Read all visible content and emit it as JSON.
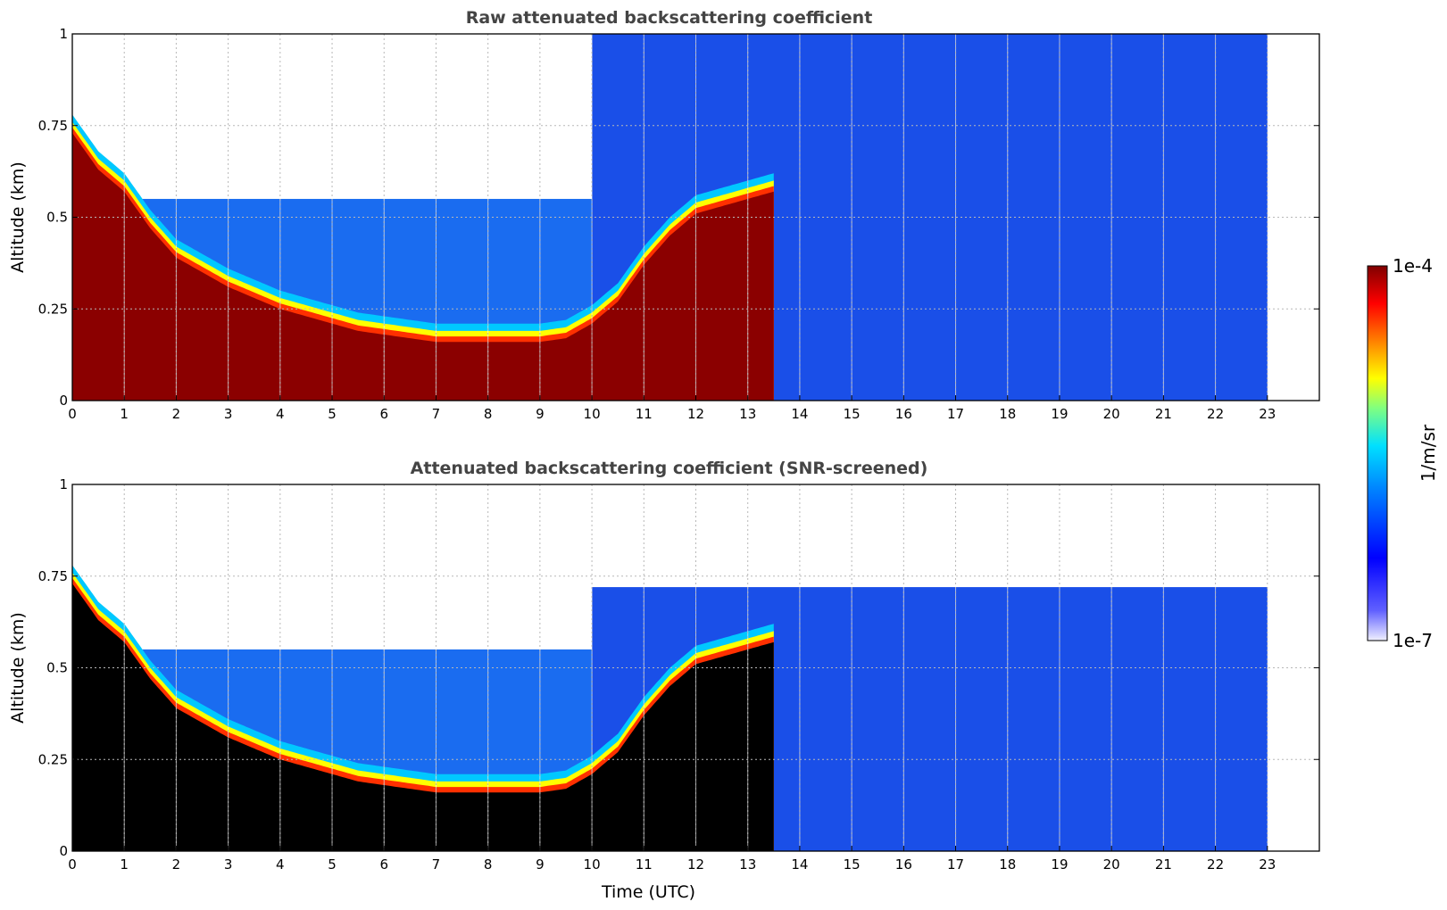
{
  "chart_data": [
    {
      "type": "heatmap",
      "title": "Raw attenuated backscattering coefficient",
      "xlabel": "",
      "ylabel": "Altitude (km)",
      "xlim": [
        0,
        24
      ],
      "ylim": [
        0,
        1
      ],
      "x_ticks": [
        "0",
        "1",
        "2",
        "3",
        "4",
        "5",
        "6",
        "7",
        "8",
        "9",
        "10",
        "11",
        "12",
        "13",
        "14",
        "15",
        "16",
        "17",
        "18",
        "19",
        "20",
        "21",
        "22",
        "23"
      ],
      "y_ticks": [
        "0",
        "0.25",
        "0.5",
        "0.75",
        "1"
      ],
      "grid": true,
      "data_end_hour": 23,
      "layer_top_km": [
        [
          0,
          0.78
        ],
        [
          0.5,
          0.68
        ],
        [
          1,
          0.62
        ],
        [
          1.5,
          0.52
        ],
        [
          2,
          0.44
        ],
        [
          2.5,
          0.4
        ],
        [
          3,
          0.36
        ],
        [
          3.5,
          0.33
        ],
        [
          4,
          0.3
        ],
        [
          4.5,
          0.28
        ],
        [
          5,
          0.26
        ],
        [
          5.5,
          0.24
        ],
        [
          6,
          0.23
        ],
        [
          6.5,
          0.22
        ],
        [
          7,
          0.21
        ],
        [
          7.5,
          0.21
        ],
        [
          8,
          0.21
        ],
        [
          8.5,
          0.21
        ],
        [
          9,
          0.21
        ],
        [
          9.5,
          0.22
        ],
        [
          10,
          0.26
        ],
        [
          10.5,
          0.32
        ],
        [
          11,
          0.42
        ],
        [
          11.5,
          0.5
        ],
        [
          12,
          0.56
        ],
        [
          12.5,
          0.58
        ],
        [
          13,
          0.6
        ],
        [
          13.5,
          0.62
        ]
      ]
    },
    {
      "type": "heatmap",
      "title": "Attenuated backscattering coefficient (SNR-screened)",
      "xlabel": "Time (UTC)",
      "ylabel": "Altitude (km)",
      "xlim": [
        0,
        24
      ],
      "ylim": [
        0,
        1
      ],
      "x_ticks": [
        "0",
        "1",
        "2",
        "3",
        "4",
        "5",
        "6",
        "7",
        "8",
        "9",
        "10",
        "11",
        "12",
        "13",
        "14",
        "15",
        "16",
        "17",
        "18",
        "19",
        "20",
        "21",
        "22",
        "23"
      ],
      "y_ticks": [
        "0",
        "0.25",
        "0.5",
        "0.75",
        "1"
      ],
      "grid": true,
      "data_end_hour": 23,
      "layer_top_km": [
        [
          0,
          0.78
        ],
        [
          0.5,
          0.68
        ],
        [
          1,
          0.62
        ],
        [
          1.5,
          0.52
        ],
        [
          2,
          0.44
        ],
        [
          2.5,
          0.4
        ],
        [
          3,
          0.36
        ],
        [
          3.5,
          0.33
        ],
        [
          4,
          0.3
        ],
        [
          4.5,
          0.28
        ],
        [
          5,
          0.26
        ],
        [
          5.5,
          0.24
        ],
        [
          6,
          0.23
        ],
        [
          6.5,
          0.22
        ],
        [
          7,
          0.21
        ],
        [
          7.5,
          0.21
        ],
        [
          8,
          0.21
        ],
        [
          8.5,
          0.21
        ],
        [
          9,
          0.21
        ],
        [
          9.5,
          0.22
        ],
        [
          10,
          0.26
        ],
        [
          10.5,
          0.32
        ],
        [
          11,
          0.42
        ],
        [
          11.5,
          0.5
        ],
        [
          12,
          0.56
        ],
        [
          12.5,
          0.58
        ],
        [
          13,
          0.6
        ],
        [
          13.5,
          0.62
        ]
      ]
    }
  ],
  "colorbar": {
    "label": "1/m/sr",
    "max_label": "1e-4",
    "min_label": "1e-7",
    "scale": "log",
    "colormap": [
      "#ffffff",
      "#0000ff",
      "#0080ff",
      "#00e0ff",
      "#80ff80",
      "#ffff00",
      "#ff8000",
      "#ff0000",
      "#800000"
    ]
  },
  "colors": {
    "background_blue": "#1a4fe8",
    "saturated_core": "#8b0000",
    "screened_core": "#000000",
    "aerosol_edge": "#00c8ff"
  }
}
